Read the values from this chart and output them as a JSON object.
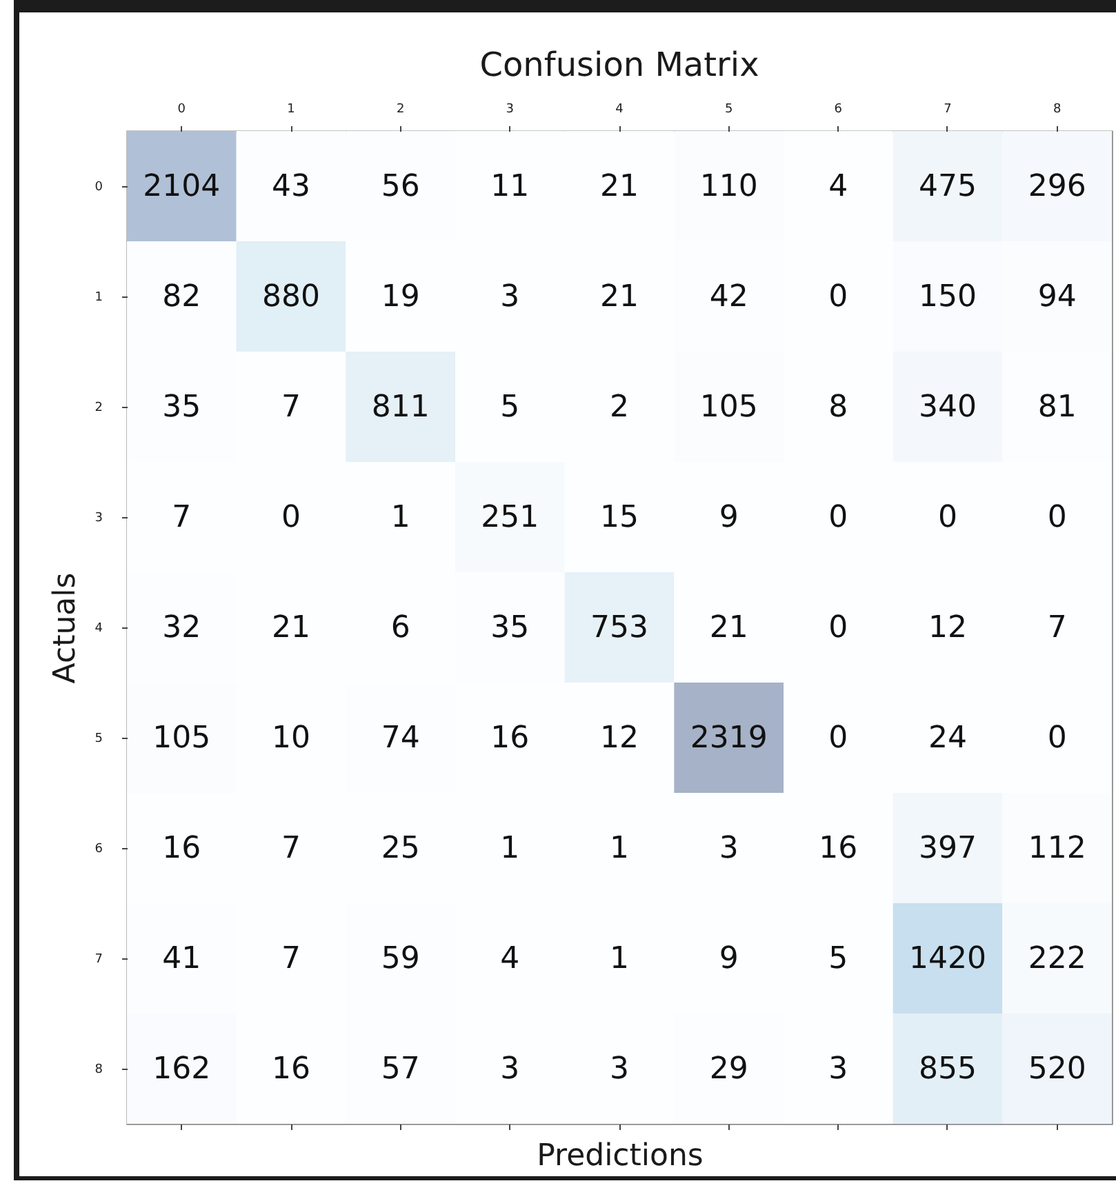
{
  "chart_data": {
    "type": "heatmap",
    "title": "Confusion Matrix",
    "xlabel": "Predictions",
    "ylabel": "Actuals",
    "categories": [
      "0",
      "1",
      "2",
      "3",
      "4",
      "5",
      "6",
      "7",
      "8"
    ],
    "y_categories": [
      "0",
      "1",
      "2",
      "3",
      "4",
      "5",
      "6",
      "7",
      "8"
    ],
    "cells": [
      [
        2104,
        43,
        56,
        11,
        21,
        110,
        4,
        475,
        296
      ],
      [
        82,
        880,
        19,
        3,
        21,
        42,
        0,
        150,
        94
      ],
      [
        35,
        7,
        811,
        5,
        2,
        105,
        8,
        340,
        81
      ],
      [
        7,
        0,
        1,
        251,
        15,
        9,
        0,
        0,
        0
      ],
      [
        32,
        21,
        6,
        35,
        753,
        21,
        0,
        12,
        7
      ],
      [
        105,
        10,
        74,
        16,
        12,
        2319,
        0,
        24,
        0
      ],
      [
        16,
        7,
        25,
        1,
        1,
        3,
        16,
        397,
        112
      ],
      [
        41,
        7,
        59,
        4,
        1,
        9,
        5,
        1420,
        222
      ],
      [
        162,
        16,
        57,
        3,
        3,
        29,
        3,
        855,
        520
      ]
    ],
    "data_labels": true
  }
}
